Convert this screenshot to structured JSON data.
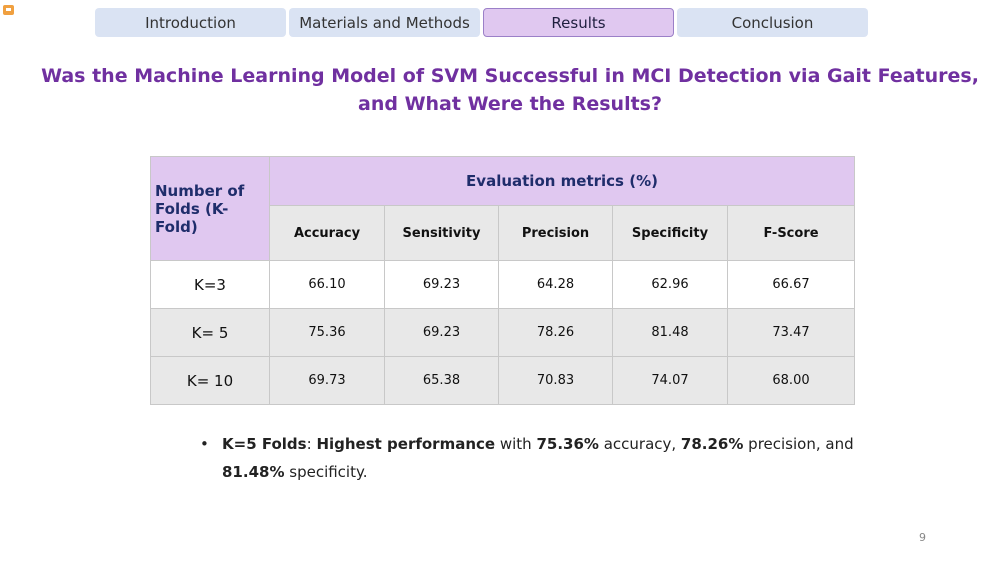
{
  "tabs": [
    "Introduction",
    "Materials and Methods",
    "Results",
    "Conclusion"
  ],
  "active_tab": "Results",
  "title": "Was the Machine Learning Model of SVM Successful in MCI Detection via Gait Features, and What Were the Results?",
  "table": {
    "row_header": "Number of Folds (K-Fold)",
    "group_header": "Evaluation metrics (%)",
    "columns": [
      "Accuracy",
      "Sensitivity",
      "Precision",
      "Specificity",
      "F-Score"
    ],
    "rows": [
      {
        "k": "K=3",
        "values": [
          "66.10",
          "69.23",
          "64.28",
          "62.96",
          "66.67"
        ]
      },
      {
        "k": "K= 5",
        "values": [
          "75.36",
          "69.23",
          "78.26",
          "81.48",
          "73.47"
        ]
      },
      {
        "k": "K= 10",
        "values": [
          "69.73",
          "65.38",
          "70.83",
          "74.07",
          "68.00"
        ]
      }
    ]
  },
  "bullet": {
    "b1": "K=5 Folds",
    "t1": ": ",
    "b2": "Highest performance",
    "t2": " with ",
    "b3": "75.36%",
    "t3": " accuracy, ",
    "b4": "78.26%",
    "t4": " precision, and ",
    "b5": "81.48%",
    "t5": " specificity."
  },
  "page_number": "9",
  "colors": {
    "title": "#7030a0",
    "tab": "#dae3f3",
    "tab_active": "#e0c8f0",
    "header": "#e0c8f0"
  }
}
